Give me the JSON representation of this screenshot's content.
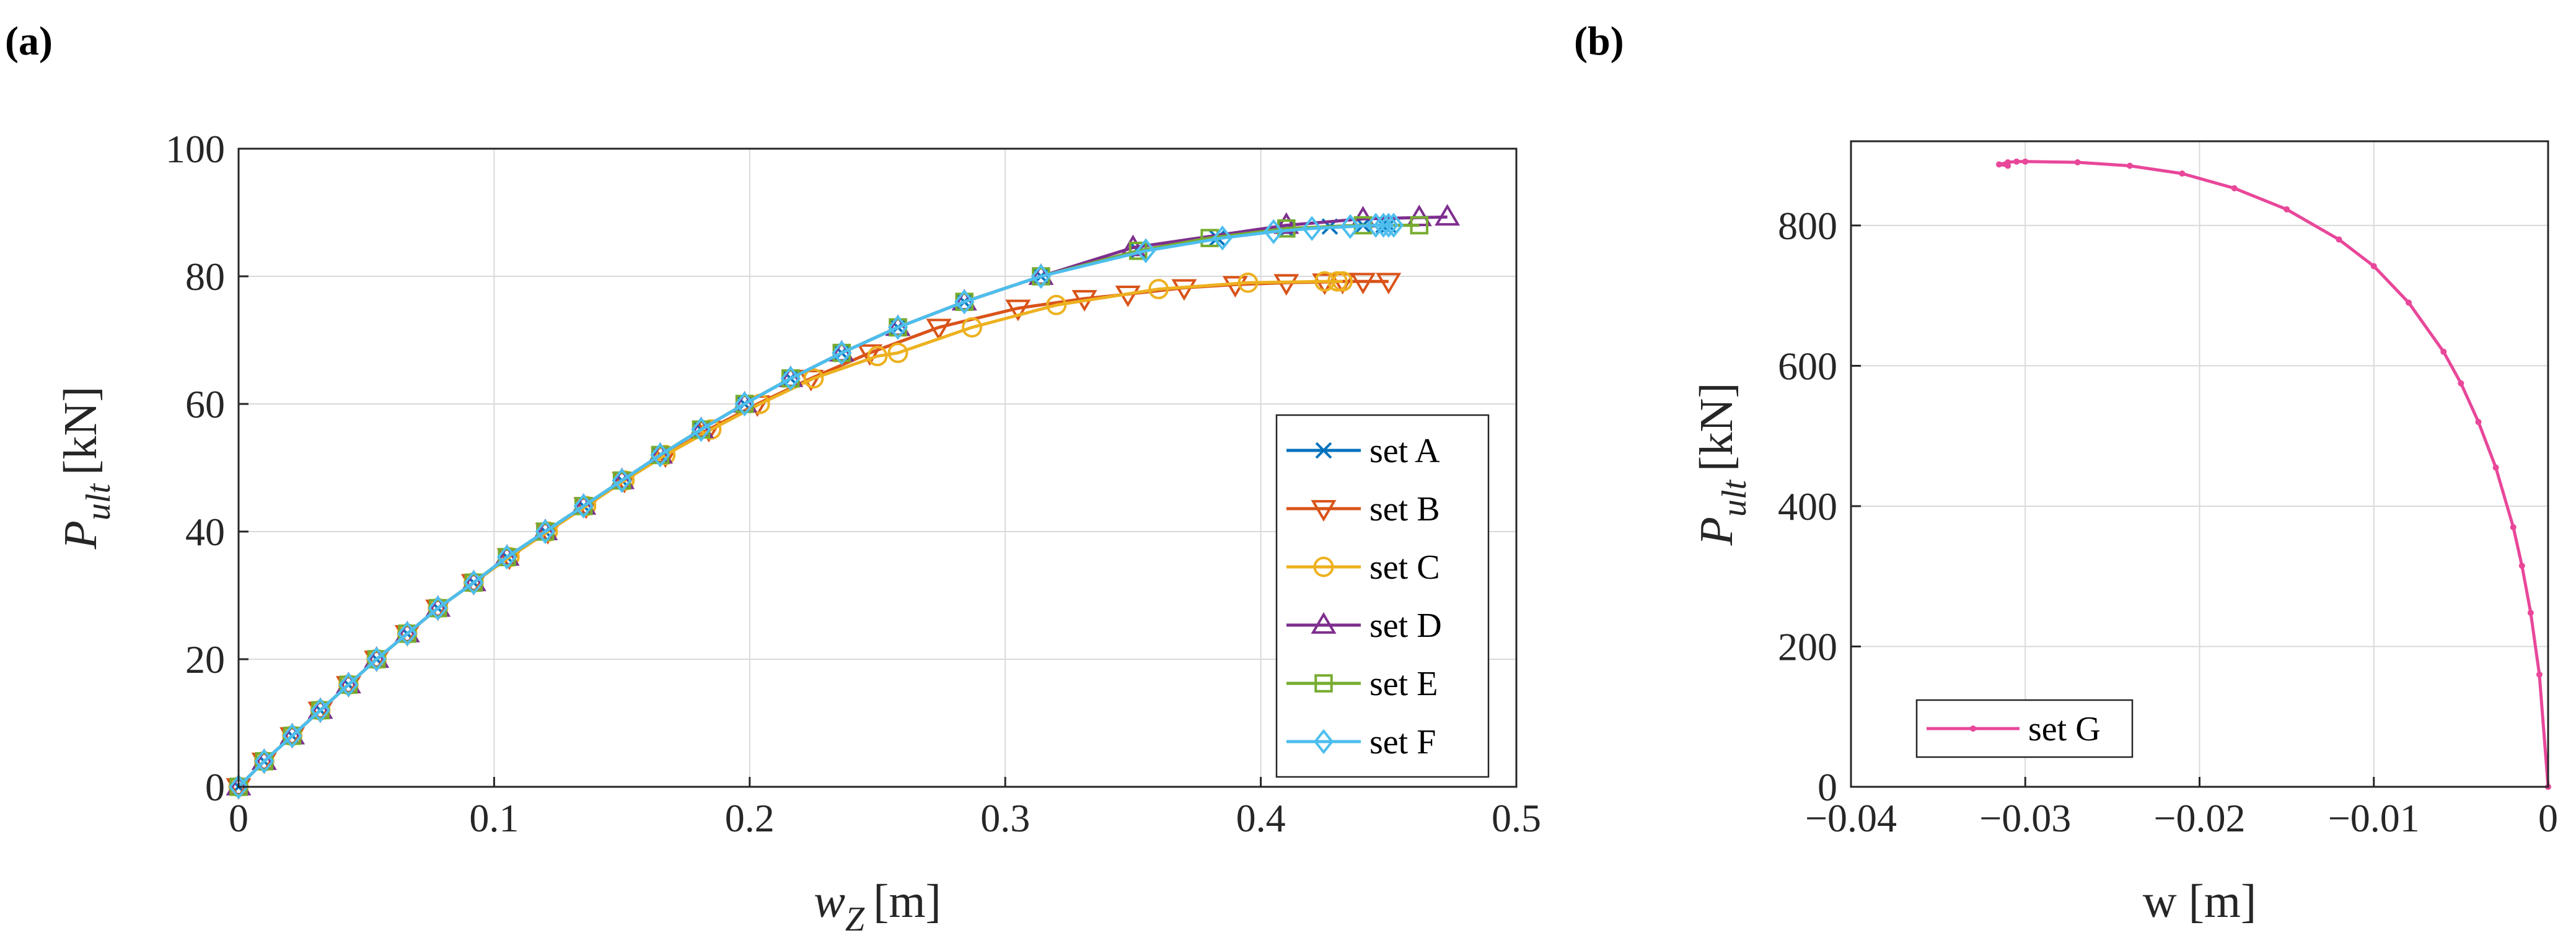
{
  "panels": {
    "a": "(a)",
    "b": "(b)"
  },
  "chart_data": [
    {
      "type": "line",
      "panel": "(a)",
      "xlabel": "w",
      "xlabel_sub": "Z",
      "xlabel_unit": "[m]",
      "ylabel": "P",
      "ylabel_sub": "ult",
      "ylabel_unit": "[kN]",
      "xlim": [
        0,
        0.5
      ],
      "ylim": [
        0,
        100
      ],
      "xticks": [
        0,
        0.1,
        0.2,
        0.3,
        0.4,
        0.5
      ],
      "xtick_labels": [
        "0",
        "0.1",
        "0.2",
        "0.3",
        "0.4",
        "0.5"
      ],
      "yticks": [
        0,
        20,
        40,
        60,
        80,
        100
      ],
      "ytick_labels": [
        "0",
        "20",
        "40",
        "60",
        "80",
        "100"
      ],
      "grid": true,
      "legend": "bottom-right",
      "series": [
        {
          "name": "set A",
          "marker": "x",
          "color": "#0072BD",
          "x": [
            0,
            0.01,
            0.021,
            0.032,
            0.043,
            0.054,
            0.066,
            0.078,
            0.092,
            0.105,
            0.12,
            0.135,
            0.15,
            0.165,
            0.181,
            0.198,
            0.216,
            0.236,
            0.258,
            0.284,
            0.314,
            0.352,
            0.383,
            0.41,
            0.427,
            0.44,
            0.448,
            0.45
          ],
          "y": [
            0,
            4,
            8,
            12,
            16,
            20,
            24,
            28,
            32,
            36,
            40,
            44,
            48,
            52,
            56,
            60,
            64,
            68,
            72,
            76,
            80,
            84,
            86,
            87.3,
            87.8,
            88,
            88,
            88
          ]
        },
        {
          "name": "set B",
          "marker": "triangle-down",
          "color": "#D95319",
          "x": [
            0,
            0.01,
            0.021,
            0.032,
            0.043,
            0.054,
            0.066,
            0.078,
            0.092,
            0.106,
            0.121,
            0.136,
            0.151,
            0.167,
            0.184,
            0.203,
            0.224,
            0.247,
            0.274,
            0.305,
            0.331,
            0.348,
            0.37,
            0.39,
            0.41,
            0.425,
            0.432,
            0.44,
            0.45
          ],
          "y": [
            0,
            4,
            8,
            12,
            16,
            20,
            24,
            28,
            32,
            36,
            40,
            44,
            48,
            52,
            56,
            60,
            64,
            68,
            72,
            75,
            76.5,
            77.2,
            78.2,
            78.7,
            79,
            79.1,
            79.2,
            79.2,
            79.2
          ]
        },
        {
          "name": "set C",
          "marker": "circle",
          "color": "#EDB120",
          "x": [
            0,
            0.01,
            0.021,
            0.032,
            0.043,
            0.054,
            0.066,
            0.078,
            0.092,
            0.106,
            0.121,
            0.136,
            0.151,
            0.167,
            0.185,
            0.204,
            0.225,
            0.25,
            0.258,
            0.287,
            0.32,
            0.36,
            0.395,
            0.425,
            0.43,
            0.432
          ],
          "y": [
            0,
            4,
            8,
            12,
            16,
            20,
            24,
            28,
            32,
            36,
            40,
            44,
            48,
            52,
            56,
            60,
            64,
            67.5,
            68,
            72,
            75.5,
            78,
            79,
            79.2,
            79.2,
            79.2
          ]
        },
        {
          "name": "set D",
          "marker": "triangle-up",
          "color": "#7E2F8E",
          "x": [
            0,
            0.01,
            0.021,
            0.032,
            0.043,
            0.054,
            0.066,
            0.078,
            0.092,
            0.105,
            0.12,
            0.135,
            0.15,
            0.165,
            0.181,
            0.198,
            0.216,
            0.236,
            0.258,
            0.284,
            0.314,
            0.35,
            0.41,
            0.44,
            0.462,
            0.473
          ],
          "y": [
            0,
            4,
            8,
            12,
            16,
            20,
            24,
            28,
            32,
            36,
            40,
            44,
            48,
            52,
            56,
            60,
            64,
            68,
            72,
            76,
            80,
            84.5,
            88,
            89,
            89.2,
            89.3
          ]
        },
        {
          "name": "set E",
          "marker": "square",
          "color": "#77AC30",
          "x": [
            0,
            0.01,
            0.021,
            0.032,
            0.043,
            0.054,
            0.066,
            0.078,
            0.092,
            0.105,
            0.12,
            0.135,
            0.15,
            0.165,
            0.181,
            0.198,
            0.216,
            0.236,
            0.258,
            0.284,
            0.314,
            0.352,
            0.38,
            0.41,
            0.44,
            0.462
          ],
          "y": [
            0,
            4,
            8,
            12,
            16,
            20,
            24,
            28,
            32,
            36,
            40,
            44,
            48,
            52,
            56,
            60,
            64,
            68,
            72,
            76,
            80,
            84,
            86,
            87.5,
            88,
            88
          ]
        },
        {
          "name": "set F",
          "marker": "diamond",
          "color": "#4DBEEE",
          "x": [
            0,
            0.01,
            0.021,
            0.032,
            0.043,
            0.054,
            0.066,
            0.078,
            0.092,
            0.105,
            0.12,
            0.135,
            0.15,
            0.165,
            0.181,
            0.198,
            0.216,
            0.236,
            0.258,
            0.284,
            0.314,
            0.355,
            0.385,
            0.405,
            0.42,
            0.435,
            0.445,
            0.448,
            0.45,
            0.452
          ],
          "y": [
            0,
            4,
            8,
            12,
            16,
            20,
            24,
            28,
            32,
            36,
            40,
            44,
            48,
            52,
            56,
            60,
            64,
            68,
            72,
            76,
            80,
            84,
            86,
            87,
            87.5,
            87.8,
            88,
            88,
            88,
            88
          ]
        }
      ]
    },
    {
      "type": "line",
      "panel": "(b)",
      "xlabel": "w [m]",
      "ylabel": "P",
      "ylabel_sub": "ult",
      "ylabel_unit": "[kN]",
      "xlim": [
        -0.04,
        0
      ],
      "ylim": [
        0,
        920
      ],
      "xticks": [
        -0.04,
        -0.03,
        -0.02,
        -0.01,
        0
      ],
      "xtick_labels": [
        "−0.04",
        "−0.03",
        "−0.02",
        "−0.01",
        "0"
      ],
      "yticks": [
        0,
        200,
        400,
        600,
        800
      ],
      "ytick_labels": [
        "0",
        "200",
        "400",
        "600",
        "800"
      ],
      "grid": true,
      "legend": "bottom-left",
      "series": [
        {
          "name": "set G",
          "marker": "dot",
          "color": "#E8479A",
          "x": [
            0,
            -0.0005,
            -0.001,
            -0.0015,
            -0.002,
            -0.003,
            -0.004,
            -0.005,
            -0.006,
            -0.008,
            -0.01,
            -0.012,
            -0.015,
            -0.018,
            -0.021,
            -0.024,
            -0.027,
            -0.03,
            -0.0305,
            -0.031,
            -0.0315,
            -0.031
          ],
          "y": [
            0,
            160,
            248,
            315,
            370,
            455,
            520,
            575,
            620,
            690,
            742,
            780,
            823,
            853,
            874,
            885,
            890,
            891,
            891,
            890,
            887,
            885
          ]
        }
      ]
    }
  ]
}
